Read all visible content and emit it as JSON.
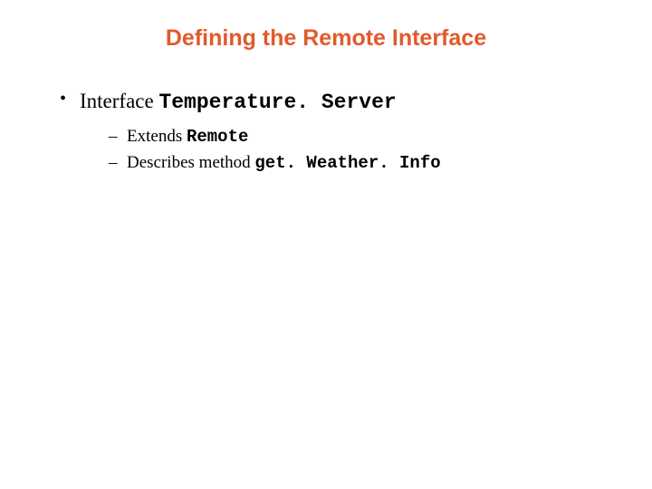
{
  "colors": {
    "title": "#e15a2b",
    "body_text": "#000000",
    "background": "#ffffff"
  },
  "typography": {
    "title_family": "Arial",
    "title_weight": 700,
    "title_size_pt": 25,
    "body_family": "Times New Roman",
    "body_size_pt": 23,
    "sub_size_pt": 19,
    "mono_family": "Courier New",
    "mono_weight": 700
  },
  "slide": {
    "title": "Defining the Remote Interface",
    "bullets": [
      {
        "prefix": "Interface ",
        "code": "Temperature. Server",
        "children": [
          {
            "prefix": "Extends ",
            "code": "Remote"
          },
          {
            "prefix": "Describes method ",
            "code": "get. Weather. Info"
          }
        ]
      }
    ]
  }
}
